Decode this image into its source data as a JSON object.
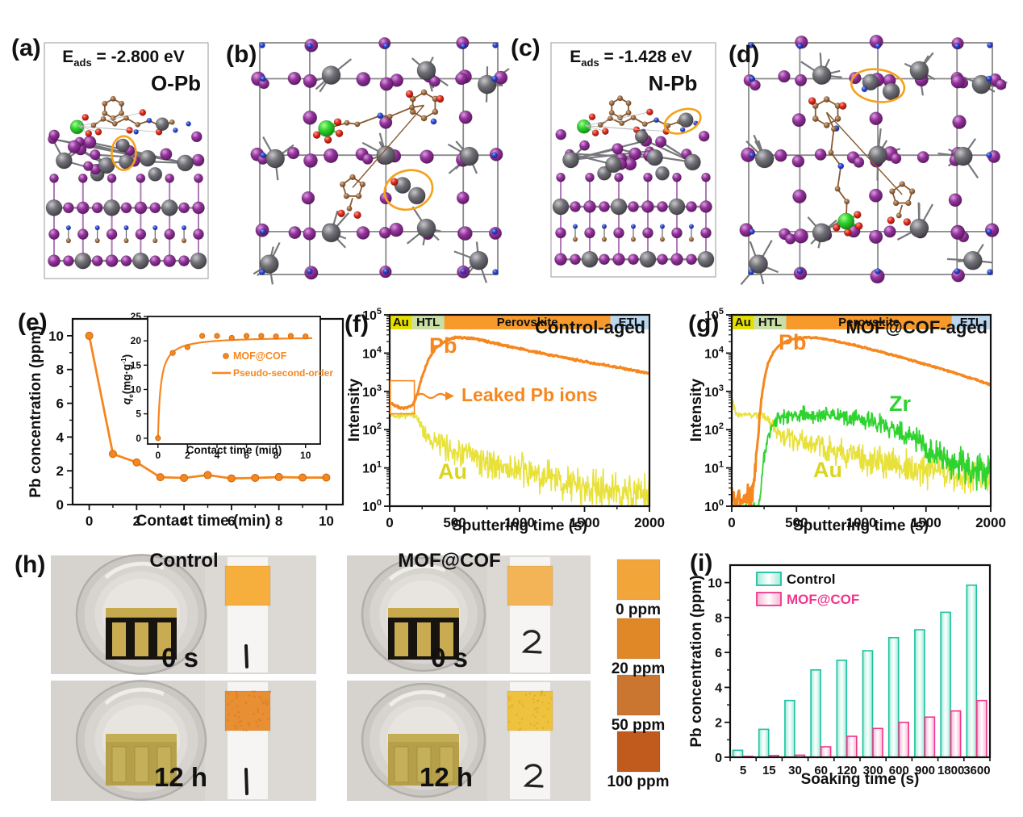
{
  "colors": {
    "orange": "#F6871F",
    "yellow_curve": "#E8E13A",
    "yellow_label": "#DCD51F",
    "green": "#2FD32F",
    "teal_edge": "#1FC0A0",
    "pink_edge": "#F0368C"
  },
  "panels": {
    "a": {
      "label": "(a)",
      "energy_base": "E",
      "energy_sub": "ads",
      "energy_rest": " = -2.800 eV",
      "site": "O-Pb"
    },
    "b": {
      "label": "(b)"
    },
    "c": {
      "label": "(c)",
      "energy_base": "E",
      "energy_sub": "ads",
      "energy_rest": " = -1.428 eV",
      "site": "N-Pb"
    },
    "d": {
      "label": "(d)"
    },
    "e": {
      "label": "(e)"
    },
    "f": {
      "label": "(f)"
    },
    "g": {
      "label": "(g)"
    },
    "h": {
      "label": "(h)",
      "left_title": "Control",
      "right_title": "MOF@COF",
      "time_top_left": "0 s",
      "time_bottom_left": "12 h",
      "time_top_right": "0 s",
      "time_bottom_right": "12 h",
      "scale": [
        {
          "label": "0 ppm",
          "color": "#F2A63A"
        },
        {
          "label": "20 ppm",
          "color": "#E08727"
        },
        {
          "label": "50 ppm",
          "color": "#CA7530"
        },
        {
          "label": "100 ppm",
          "color": "#C05A1D"
        }
      ]
    },
    "i": {
      "label": "(i)"
    }
  },
  "inset_ylabel_parts": {
    "base": "q",
    "sub": "e",
    "rest": "(mg·g",
    "sup": "-1",
    "close": ")"
  },
  "chart_data": [
    {
      "id": "e",
      "type": "line",
      "xlabel": "Contact time (min)",
      "ylabel": "Pb concentration (ppm)",
      "xlim": [
        -0.7,
        10.7
      ],
      "ylim": [
        0,
        11
      ],
      "xticks": [
        0,
        2,
        4,
        6,
        8,
        10
      ],
      "yticks": [
        0,
        2,
        4,
        6,
        8,
        10
      ],
      "series": [
        {
          "color": "#F6871F",
          "x": [
            0,
            1,
            2,
            3,
            4,
            5,
            6,
            7,
            8,
            9,
            10
          ],
          "y": [
            10,
            3.0,
            2.5,
            1.62,
            1.58,
            1.75,
            1.55,
            1.58,
            1.63,
            1.6,
            1.6
          ]
        }
      ],
      "inset": {
        "xlabel": "Contact time (min)",
        "xlim": [
          -0.7,
          11
        ],
        "ylim": [
          -1.2,
          25
        ],
        "xticks": [
          0,
          2,
          4,
          6,
          8,
          10
        ],
        "yticks": [
          0,
          5,
          10,
          15,
          20,
          25
        ],
        "scatter": {
          "name": "MOF@COF",
          "x": [
            0,
            1,
            2,
            3,
            4,
            5,
            6,
            7,
            8,
            9,
            10
          ],
          "y": [
            0,
            17.5,
            18.7,
            21,
            21,
            20.6,
            21,
            21,
            20.9,
            21,
            20.9
          ]
        },
        "fit": {
          "name": "Pseudo-second-order",
          "qe": 20.9,
          "k": 0.26
        }
      }
    },
    {
      "id": "f",
      "type": "line",
      "title": "Control-aged",
      "xlabel": "Sputtering time (s)",
      "ylabel": "Intensity",
      "xlim": [
        0,
        2000
      ],
      "xticks": [
        0,
        500,
        1000,
        1500,
        2000
      ],
      "ylog_decades": [
        0,
        5
      ],
      "bands": [
        {
          "label": "Au",
          "from": 0,
          "to": 172,
          "color": "#E5DF00"
        },
        {
          "label": "HTL",
          "from": 172,
          "to": 420,
          "color": "#CADFA5"
        },
        {
          "label": "Perovskite",
          "from": 420,
          "to": 1700,
          "color": "#F89A2B"
        },
        {
          "label": "ETL",
          "from": 1700,
          "to": 2000,
          "color": "#BAD6EE"
        }
      ],
      "labels": {
        "pb": "Pb",
        "au": "Au",
        "leak": "Leaked Pb ions"
      },
      "callout": {
        "x": [
          5,
          190
        ],
        "y": [
          260,
          1900
        ]
      },
      "series": [
        {
          "name": "Au",
          "color": "#E8E13A",
          "width": 1.6,
          "noise": [
            [
              0,
              0.04
            ],
            [
              200,
              0.05
            ],
            [
              300,
              0.16
            ],
            [
              700,
              0.22
            ],
            [
              2000,
              0.3
            ]
          ],
          "keypoints": [
            [
              0,
              235
            ],
            [
              190,
              235
            ],
            [
              215,
              200
            ],
            [
              240,
              130
            ],
            [
              270,
              85
            ],
            [
              310,
              60
            ],
            [
              360,
              45
            ],
            [
              420,
              36
            ],
            [
              480,
              30
            ],
            [
              560,
              24
            ],
            [
              660,
              18
            ],
            [
              780,
              13
            ],
            [
              900,
              10
            ],
            [
              1050,
              7.5
            ],
            [
              1200,
              5.5
            ],
            [
              1350,
              4.2
            ],
            [
              1500,
              3.2
            ],
            [
              1650,
              2.6
            ],
            [
              1800,
              2.1
            ],
            [
              2000,
              1.7
            ]
          ]
        },
        {
          "name": "Pb",
          "color": "#F6871F",
          "width": 3,
          "noise": [
            [
              0,
              0.015
            ],
            [
              2000,
              0.015
            ]
          ],
          "keypoints": [
            [
              0,
              520
            ],
            [
              40,
              430
            ],
            [
              90,
              360
            ],
            [
              140,
              370
            ],
            [
              185,
              480
            ],
            [
              215,
              900
            ],
            [
              250,
              2500
            ],
            [
              300,
              7000
            ],
            [
              350,
              13000
            ],
            [
              420,
              20000
            ],
            [
              500,
              25500
            ],
            [
              560,
              25800
            ],
            [
              650,
              24000
            ],
            [
              750,
              20000
            ],
            [
              900,
              15500
            ],
            [
              1050,
              12000
            ],
            [
              1200,
              9500
            ],
            [
              1350,
              7600
            ],
            [
              1500,
              6000
            ],
            [
              1650,
              4900
            ],
            [
              1800,
              4000
            ],
            [
              1900,
              3400
            ],
            [
              2000,
              2900
            ]
          ]
        }
      ]
    },
    {
      "id": "g",
      "type": "line",
      "title": "MOF@COF-aged",
      "xlabel": "Sputtering time (s)",
      "ylabel": "Intensity",
      "xlim": [
        0,
        2000
      ],
      "xticks": [
        0,
        500,
        1000,
        1500,
        2000
      ],
      "ylog_decades": [
        0,
        5
      ],
      "bands": [
        {
          "label": "Au",
          "from": 0,
          "to": 172,
          "color": "#E5DF00"
        },
        {
          "label": "HTL",
          "from": 172,
          "to": 420,
          "color": "#CADFA5"
        },
        {
          "label": "Perovskite",
          "from": 420,
          "to": 1700,
          "color": "#F89A2B"
        },
        {
          "label": "ETL",
          "from": 1700,
          "to": 2000,
          "color": "#BAD6EE"
        }
      ],
      "labels": {
        "pb": "Pb",
        "au": "Au",
        "zr": "Zr"
      },
      "series": [
        {
          "name": "Au",
          "color": "#E8E13A",
          "width": 1.6,
          "noise": [
            [
              0,
              0.05
            ],
            [
              250,
              0.06
            ],
            [
              400,
              0.15
            ],
            [
              900,
              0.2
            ],
            [
              2000,
              0.26
            ]
          ],
          "keypoints": [
            [
              0,
              750
            ],
            [
              15,
              420
            ],
            [
              35,
              280
            ],
            [
              60,
              250
            ],
            [
              240,
              250
            ],
            [
              270,
              200
            ],
            [
              300,
              130
            ],
            [
              330,
              95
            ],
            [
              370,
              78
            ],
            [
              420,
              65
            ],
            [
              480,
              55
            ],
            [
              560,
              45
            ],
            [
              660,
              36
            ],
            [
              780,
              28
            ],
            [
              900,
              22
            ],
            [
              1050,
              17
            ],
            [
              1200,
              13
            ],
            [
              1350,
              10.5
            ],
            [
              1500,
              8.5
            ],
            [
              1700,
              6.5
            ],
            [
              2000,
              5
            ]
          ]
        },
        {
          "name": "Zr",
          "color": "#2FD32F",
          "width": 1.8,
          "noise": [
            [
              0,
              0.12
            ],
            [
              200,
              0.12
            ],
            [
              400,
              0.1
            ],
            [
              1300,
              0.16
            ],
            [
              2000,
              0.3
            ]
          ],
          "keypoints": [
            [
              0,
              0.7
            ],
            [
              200,
              0.7
            ],
            [
              215,
              1.5
            ],
            [
              235,
              6
            ],
            [
              255,
              25
            ],
            [
              280,
              70
            ],
            [
              310,
              130
            ],
            [
              350,
              180
            ],
            [
              420,
              220
            ],
            [
              500,
              245
            ],
            [
              600,
              248
            ],
            [
              700,
              240
            ],
            [
              800,
              222
            ],
            [
              900,
              200
            ],
            [
              1000,
              175
            ],
            [
              1100,
              148
            ],
            [
              1200,
              118
            ],
            [
              1300,
              88
            ],
            [
              1400,
              55
            ],
            [
              1480,
              38
            ],
            [
              1560,
              26
            ],
            [
              1650,
              18
            ],
            [
              1750,
              13
            ],
            [
              1850,
              10
            ],
            [
              2000,
              7
            ]
          ]
        },
        {
          "name": "Pb",
          "color": "#F6871F",
          "width": 3,
          "noise": [
            [
              0,
              0.2
            ],
            [
              150,
              0.2
            ],
            [
              220,
              0.04
            ],
            [
              300,
              0.012
            ],
            [
              2000,
              0.012
            ]
          ],
          "keypoints": [
            [
              0,
              1.6
            ],
            [
              140,
              1.8
            ],
            [
              165,
              3
            ],
            [
              185,
              12
            ],
            [
              205,
              80
            ],
            [
              225,
              500
            ],
            [
              250,
              2000
            ],
            [
              280,
              5200
            ],
            [
              320,
              10500
            ],
            [
              370,
              16000
            ],
            [
              430,
              21000
            ],
            [
              500,
              24500
            ],
            [
              570,
              26000
            ],
            [
              650,
              25000
            ],
            [
              750,
              22500
            ],
            [
              850,
              19000
            ],
            [
              950,
              16000
            ],
            [
              1100,
              12000
            ],
            [
              1250,
              8800
            ],
            [
              1400,
              6300
            ],
            [
              1550,
              4500
            ],
            [
              1700,
              3200
            ],
            [
              1850,
              2200
            ],
            [
              2000,
              1500
            ]
          ]
        }
      ]
    },
    {
      "id": "i",
      "type": "bar",
      "xlabel": "Soaking time (s)",
      "ylabel": "Pb concentration (ppm)",
      "categories": [
        "5",
        "15",
        "30",
        "60",
        "120",
        "300",
        "600",
        "900",
        "1800",
        "3600"
      ],
      "ylim": [
        0,
        11
      ],
      "yticks": [
        0,
        2,
        4,
        6,
        8,
        10
      ],
      "series": [
        {
          "name": "Control",
          "edge": "#1FC0A0",
          "values": [
            0.4,
            1.6,
            3.25,
            5.0,
            5.55,
            6.1,
            6.85,
            7.3,
            8.3,
            9.85
          ]
        },
        {
          "name": "MOF@COF",
          "edge": "#F0368C",
          "values": [
            0.05,
            0.1,
            0.12,
            0.6,
            1.2,
            1.65,
            2.0,
            2.3,
            2.65,
            3.25
          ]
        }
      ]
    }
  ]
}
